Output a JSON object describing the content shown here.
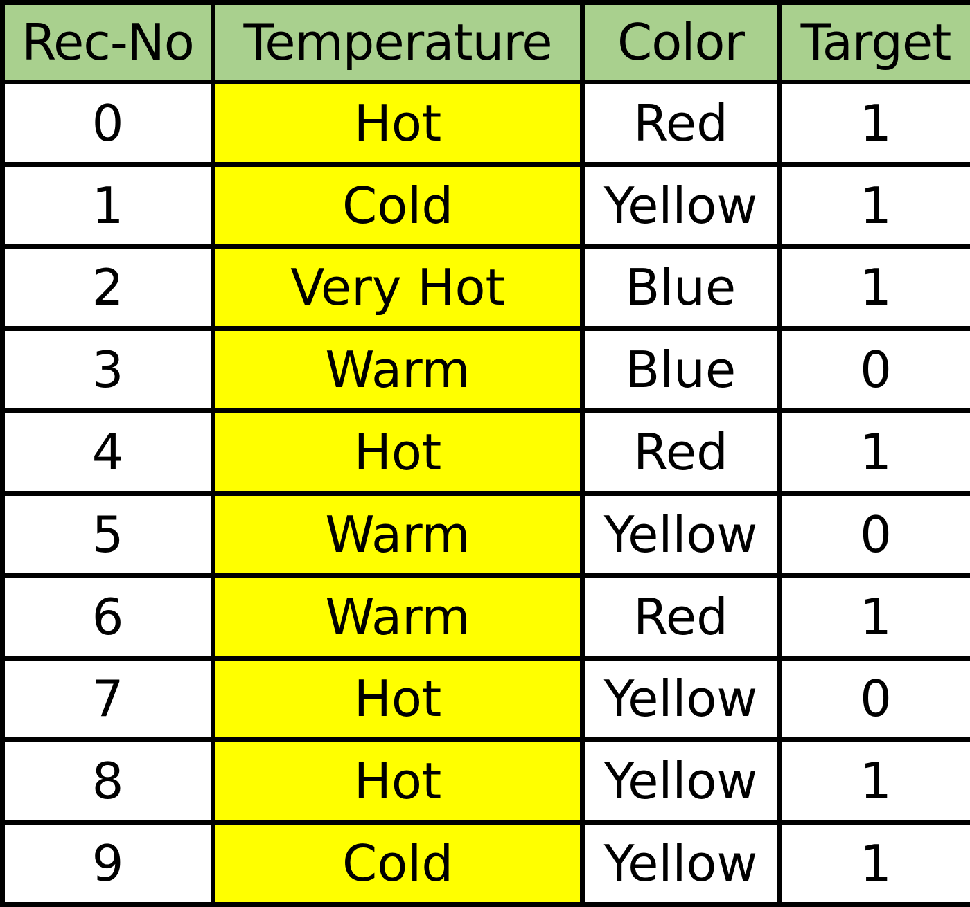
{
  "colors": {
    "header_bg": "#a9d08e",
    "highlight_column_bg": "#ffff00",
    "cell_bg": "#ffffff",
    "border": "#000000"
  },
  "table": {
    "headers": [
      "Rec-No",
      "Temperature",
      "Color",
      "Target"
    ],
    "rows": [
      [
        "0",
        "Hot",
        "Red",
        "1"
      ],
      [
        "1",
        "Cold",
        "Yellow",
        "1"
      ],
      [
        "2",
        "Very Hot",
        "Blue",
        "1"
      ],
      [
        "3",
        "Warm",
        "Blue",
        "0"
      ],
      [
        "4",
        "Hot",
        "Red",
        "1"
      ],
      [
        "5",
        "Warm",
        "Yellow",
        "0"
      ],
      [
        "6",
        "Warm",
        "Red",
        "1"
      ],
      [
        "7",
        "Hot",
        "Yellow",
        "0"
      ],
      [
        "8",
        "Hot",
        "Yellow",
        "1"
      ],
      [
        "9",
        "Cold",
        "Yellow",
        "1"
      ]
    ]
  }
}
